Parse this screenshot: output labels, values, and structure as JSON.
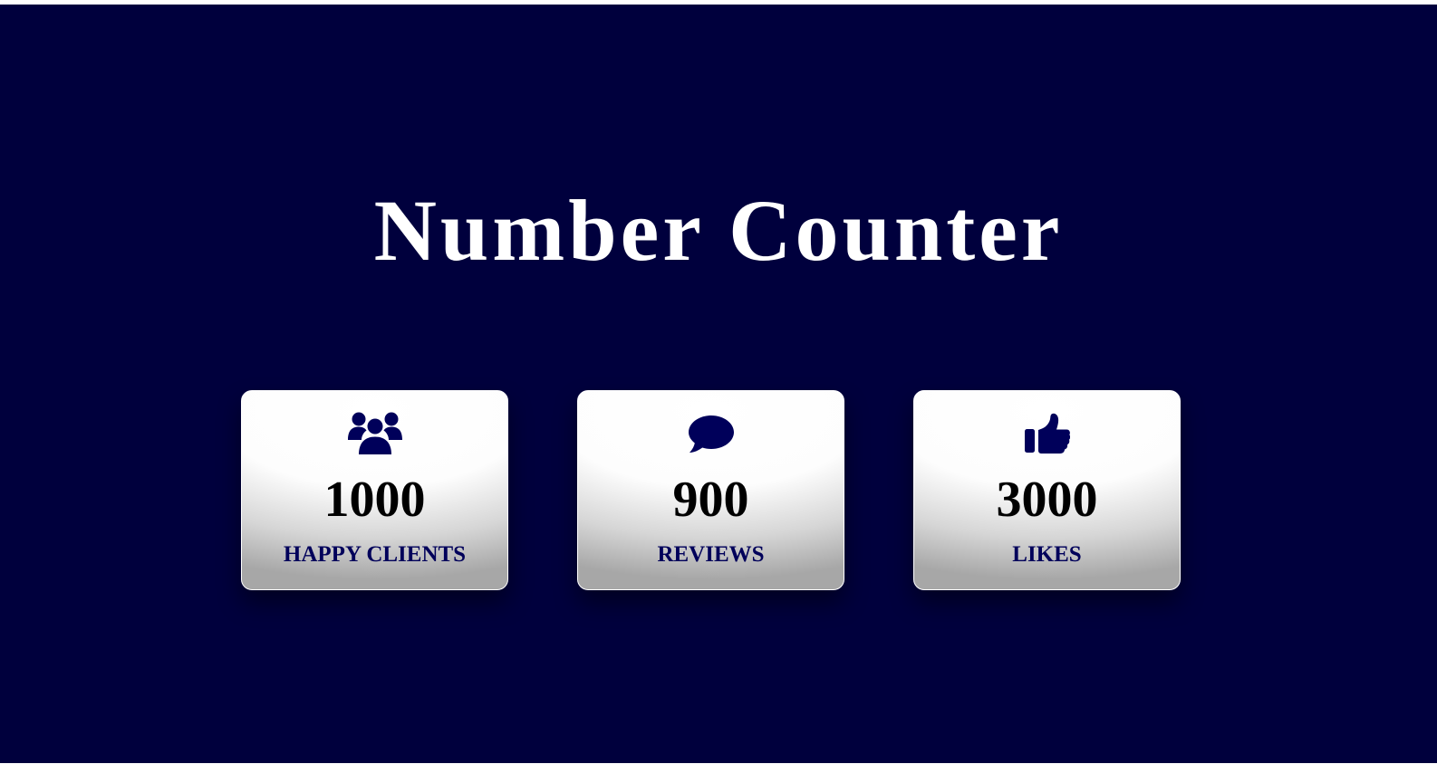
{
  "page": {
    "title": "Number Counter",
    "background_color": "#00003d",
    "accent_color": "#00005a"
  },
  "counters": [
    {
      "icon": "users-icon",
      "value": "1000",
      "label": "HAPPY CLIENTS"
    },
    {
      "icon": "comment-icon",
      "value": "900",
      "label": "REVIEWS"
    },
    {
      "icon": "thumbs-up-icon",
      "value": "3000",
      "label": "LIKES"
    }
  ]
}
